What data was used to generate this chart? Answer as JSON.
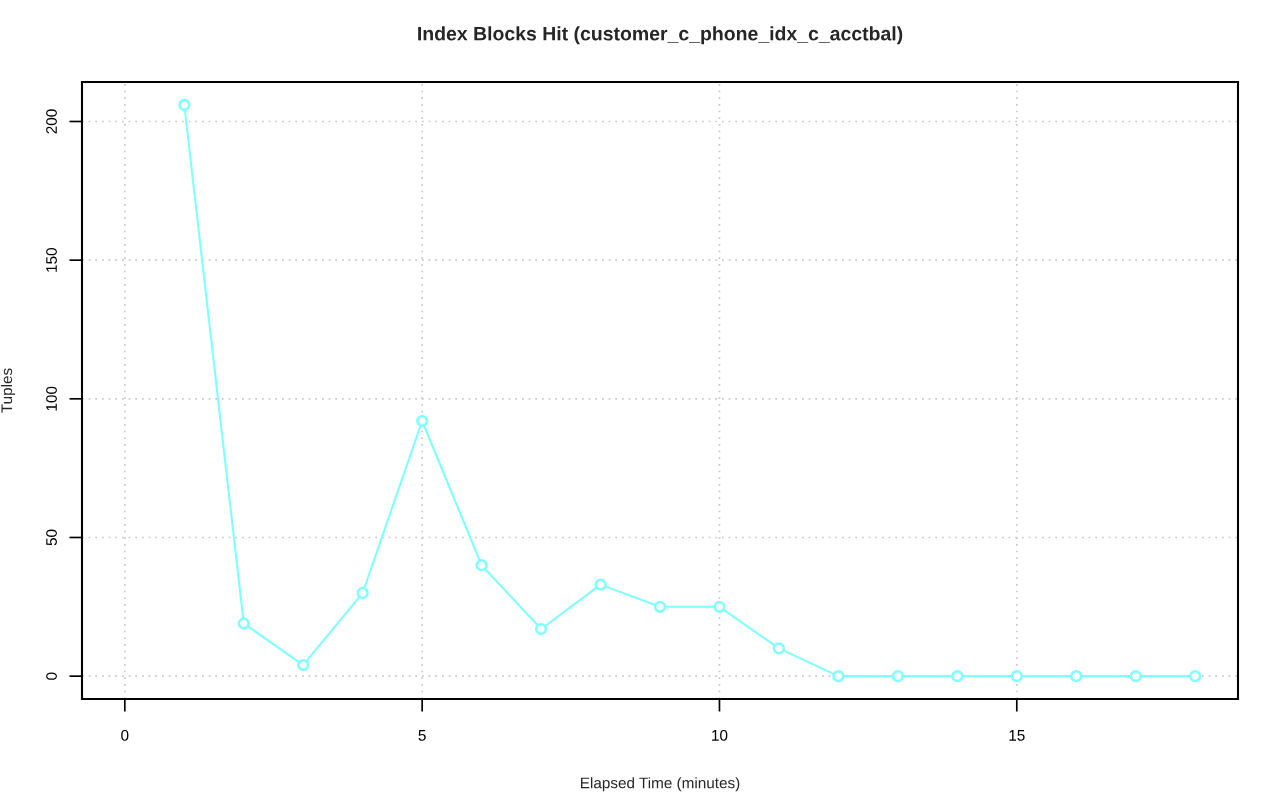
{
  "chart_data": {
    "type": "line",
    "title": "Index Blocks Hit (customer_c_phone_idx_c_acctbal)",
    "xlabel": "Elapsed Time (minutes)",
    "ylabel": "Tuples",
    "x": [
      1,
      2,
      3,
      4,
      5,
      6,
      7,
      8,
      9,
      10,
      11,
      12,
      13,
      14,
      15,
      16,
      17,
      18
    ],
    "series": [
      {
        "color": "#7fffff",
        "values": [
          206,
          19,
          4,
          30,
          92,
          40,
          17,
          33,
          25,
          25,
          10,
          0,
          0,
          0,
          0,
          0,
          0,
          0
        ]
      }
    ],
    "xlim": [
      -0.72,
      18.72
    ],
    "ylim": [
      -8.24,
      214.24
    ],
    "xticks": [
      0,
      5,
      10,
      15
    ],
    "yticks": [
      0,
      50,
      100,
      150,
      200
    ],
    "grid": true,
    "marker": "circle",
    "line_style": "solid"
  }
}
